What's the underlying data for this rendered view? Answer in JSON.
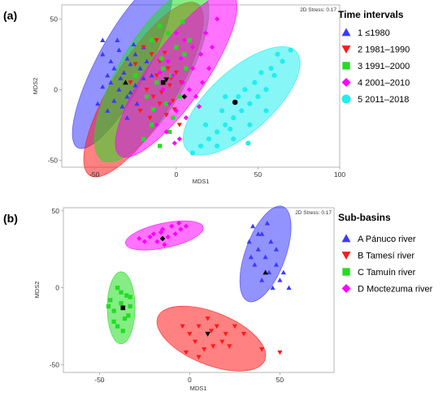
{
  "chart_data": [
    {
      "type": "scatter",
      "panel_label": "(a)",
      "xlabel": "MDS1",
      "ylabel": "MDS2",
      "xlim": [
        -70,
        100
      ],
      "ylim": [
        -55,
        60
      ],
      "xticks": [
        -50,
        0,
        50,
        100
      ],
      "yticks": [
        -50,
        0,
        50
      ],
      "stress_label": "2D Stress: 0.17",
      "legend_title": "Time intervals",
      "legend_position": "right",
      "series": [
        {
          "name": "1 ≤1980",
          "marker": "triangle-up",
          "color": "#3a3aff",
          "ellipse": {
            "cx": -33,
            "cy": 18,
            "rx": 58,
            "ry": 18,
            "angle": 62
          },
          "centroid": [
            -31,
            5
          ],
          "points": [
            [
              -45,
              25
            ],
            [
              -40,
              20
            ],
            [
              -35,
              28
            ],
            [
              -30,
              22
            ],
            [
              -25,
              25
            ],
            [
              -20,
              30
            ],
            [
              -42,
              10
            ],
            [
              -38,
              15
            ],
            [
              -32,
              12
            ],
            [
              -28,
              18
            ],
            [
              -22,
              15
            ],
            [
              -18,
              20
            ],
            [
              -45,
              2
            ],
            [
              -40,
              5
            ],
            [
              -35,
              0
            ],
            [
              -30,
              -5
            ],
            [
              -25,
              3
            ],
            [
              -20,
              8
            ],
            [
              -48,
              -10
            ],
            [
              -42,
              -15
            ],
            [
              -38,
              -8
            ],
            [
              -33,
              -12
            ],
            [
              -28,
              -2
            ],
            [
              -24,
              -10
            ],
            [
              -36,
              35
            ],
            [
              -26,
              32
            ],
            [
              -45,
              35
            ],
            [
              -15,
              10
            ],
            [
              -30,
              -20
            ],
            [
              -34,
              8
            ]
          ]
        },
        {
          "name": "2 1981–1990",
          "marker": "triangle-down",
          "color": "#ff1a1a",
          "ellipse": {
            "cx": -20,
            "cy": 0,
            "rx": 62,
            "ry": 22,
            "angle": 58
          },
          "centroid": [
            -6,
            7
          ],
          "points": [
            [
              -20,
              30
            ],
            [
              -15,
              25
            ],
            [
              -10,
              20
            ],
            [
              -5,
              15
            ],
            [
              -12,
              10
            ],
            [
              -8,
              5
            ],
            [
              -3,
              8
            ],
            [
              0,
              12
            ],
            [
              -18,
              0
            ],
            [
              -14,
              -5
            ],
            [
              -9,
              -2
            ],
            [
              -4,
              3
            ],
            [
              -22,
              -15
            ],
            [
              -16,
              -20
            ],
            [
              -10,
              -10
            ],
            [
              -6,
              -18
            ],
            [
              2,
              -25
            ],
            [
              -25,
              18
            ],
            [
              -2,
              -8
            ],
            [
              3,
              5
            ],
            [
              -28,
              5
            ],
            [
              -12,
              35
            ],
            [
              -7,
              26
            ],
            [
              -1,
              -14
            ]
          ]
        },
        {
          "name": "3 1991–2000",
          "marker": "square",
          "color": "#22dd22",
          "ellipse": {
            "cx": -15,
            "cy": 10,
            "rx": 60,
            "ry": 24,
            "angle": 60
          },
          "centroid": [
            -8,
            5
          ],
          "points": [
            [
              -15,
              35
            ],
            [
              -10,
              45
            ],
            [
              -5,
              40
            ],
            [
              0,
              30
            ],
            [
              5,
              25
            ],
            [
              -8,
              15
            ],
            [
              -3,
              10
            ],
            [
              -12,
              5
            ],
            [
              -18,
              -5
            ],
            [
              -6,
              -10
            ],
            [
              -2,
              -20
            ],
            [
              -15,
              -25
            ],
            [
              -20,
              -35
            ],
            [
              -10,
              -40
            ],
            [
              2,
              -5
            ],
            [
              -25,
              10
            ],
            [
              8,
              35
            ],
            [
              4,
              48
            ],
            [
              -9,
              22
            ],
            [
              -14,
              -14
            ],
            [
              -4,
              -30
            ],
            [
              6,
              15
            ]
          ]
        },
        {
          "name": "4 2001–2010",
          "marker": "diamond",
          "color": "#ff00ff",
          "ellipse": {
            "cx": 0,
            "cy": 10,
            "rx": 60,
            "ry": 20,
            "angle": 55
          },
          "centroid": [
            5,
            -5
          ],
          "points": [
            [
              0,
              40
            ],
            [
              5,
              35
            ],
            [
              10,
              30
            ],
            [
              15,
              25
            ],
            [
              20,
              15
            ],
            [
              -5,
              20
            ],
            [
              -2,
              10
            ],
            [
              4,
              5
            ],
            [
              8,
              0
            ],
            [
              12,
              -5
            ],
            [
              -8,
              0
            ],
            [
              -4,
              -10
            ],
            [
              0,
              -15
            ],
            [
              6,
              -20
            ],
            [
              -12,
              -25
            ],
            [
              -6,
              -30
            ],
            [
              2,
              -35
            ],
            [
              18,
              40
            ],
            [
              25,
              50
            ],
            [
              22,
              30
            ],
            [
              10,
              15
            ],
            [
              14,
              -12
            ],
            [
              -10,
              12
            ],
            [
              3,
              22
            ],
            [
              16,
              5
            ],
            [
              -1,
              -38
            ]
          ]
        },
        {
          "name": "5 2011–2018",
          "marker": "circle",
          "color": "#22eeee",
          "ellipse": {
            "cx": 40,
            "cy": -8,
            "rx": 45,
            "ry": 22,
            "angle": 42
          },
          "centroid": [
            36,
            -9
          ],
          "points": [
            [
              10,
              -45
            ],
            [
              15,
              -40
            ],
            [
              20,
              -35
            ],
            [
              25,
              -30
            ],
            [
              30,
              -25
            ],
            [
              35,
              -20
            ],
            [
              40,
              -15
            ],
            [
              45,
              -10
            ],
            [
              50,
              -5
            ],
            [
              55,
              0
            ],
            [
              60,
              10
            ],
            [
              65,
              20
            ],
            [
              70,
              28
            ],
            [
              18,
              -25
            ],
            [
              28,
              -15
            ],
            [
              38,
              -5
            ],
            [
              48,
              5
            ],
            [
              58,
              15
            ],
            [
              25,
              -40
            ],
            [
              35,
              -35
            ],
            [
              45,
              -25
            ],
            [
              55,
              -15
            ],
            [
              30,
              -5
            ],
            [
              42,
              0
            ],
            [
              52,
              12
            ],
            [
              62,
              25
            ],
            [
              33,
              -28
            ],
            [
              44,
              -38
            ]
          ]
        }
      ]
    },
    {
      "type": "scatter",
      "panel_label": "(b)",
      "xlabel": "MDS1",
      "ylabel": "MDS2",
      "xlim": [
        -70,
        80
      ],
      "ylim": [
        -55,
        52
      ],
      "xticks": [
        -50,
        0,
        50
      ],
      "yticks": [
        -50,
        0,
        50
      ],
      "stress_label": "2D Stress: 0.17",
      "legend_title": "Sub-basins",
      "legend_position": "right",
      "series": [
        {
          "name": "A  Pánuco river",
          "marker": "triangle-up",
          "color": "#3a3aff",
          "ellipse": {
            "cx": 42,
            "cy": 22,
            "rx": 28,
            "ry": 13,
            "angle": 70
          },
          "centroid": [
            42,
            10
          ],
          "points": [
            [
              35,
              40
            ],
            [
              40,
              35
            ],
            [
              45,
              30
            ],
            [
              38,
              25
            ],
            [
              42,
              20
            ],
            [
              48,
              15
            ],
            [
              36,
              15
            ],
            [
              44,
              10
            ],
            [
              50,
              5
            ],
            [
              40,
              5
            ],
            [
              46,
              0
            ],
            [
              55,
              0
            ],
            [
              33,
              30
            ],
            [
              48,
              25
            ],
            [
              52,
              10
            ],
            [
              38,
              35
            ],
            [
              43,
              42
            ],
            [
              34,
              20
            ]
          ]
        },
        {
          "name": "B  Tamesí river",
          "marker": "triangle-down",
          "color": "#ff1a1a",
          "ellipse": {
            "cx": 12,
            "cy": -33,
            "rx": 32,
            "ry": 17,
            "angle": -22
          },
          "centroid": [
            10,
            -30
          ],
          "points": [
            [
              0,
              -30
            ],
            [
              5,
              -25
            ],
            [
              10,
              -20
            ],
            [
              15,
              -25
            ],
            [
              20,
              -30
            ],
            [
              3,
              -35
            ],
            [
              8,
              -40
            ],
            [
              13,
              -38
            ],
            [
              18,
              -35
            ],
            [
              -2,
              -42
            ],
            [
              5,
              -45
            ],
            [
              25,
              -25
            ],
            [
              30,
              -30
            ],
            [
              40,
              -40
            ],
            [
              50,
              -42
            ],
            [
              12,
              -28
            ],
            [
              22,
              -38
            ],
            [
              -4,
              -25
            ]
          ]
        },
        {
          "name": "C  Tamuín river",
          "marker": "square",
          "color": "#22dd22",
          "ellipse": {
            "cx": -38,
            "cy": -13,
            "rx": 20,
            "ry": 9,
            "angle": 90
          },
          "centroid": [
            -37,
            -13
          ],
          "points": [
            [
              -40,
              0
            ],
            [
              -35,
              -5
            ],
            [
              -38,
              -10
            ],
            [
              -42,
              -15
            ],
            [
              -36,
              -20
            ],
            [
              -40,
              -25
            ],
            [
              -33,
              -12
            ],
            [
              -44,
              -8
            ],
            [
              -38,
              -3
            ],
            [
              -34,
              -18
            ],
            [
              -42,
              -22
            ],
            [
              -37,
              -28
            ],
            [
              -45,
              -12
            ],
            [
              -33,
              -6
            ]
          ]
        },
        {
          "name": "D  Moctezuma river",
          "marker": "diamond",
          "color": "#ff00ff",
          "ellipse": {
            "cx": -14,
            "cy": 34,
            "rx": 22,
            "ry": 8,
            "angle": 12
          },
          "centroid": [
            -15,
            32
          ],
          "points": [
            [
              -25,
              30
            ],
            [
              -20,
              35
            ],
            [
              -15,
              38
            ],
            [
              -10,
              40
            ],
            [
              -5,
              38
            ],
            [
              -18,
              30
            ],
            [
              -12,
              33
            ],
            [
              -8,
              35
            ],
            [
              -2,
              40
            ],
            [
              -22,
              33
            ],
            [
              -14,
              28
            ],
            [
              -6,
              42
            ],
            [
              -28,
              32
            ],
            [
              -16,
              36
            ]
          ]
        }
      ]
    }
  ]
}
